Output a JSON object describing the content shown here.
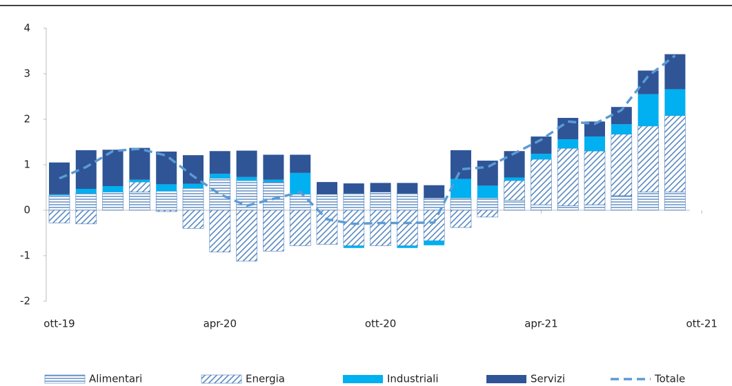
{
  "chart_data": {
    "type": "bar",
    "categories": [
      "ott-19",
      null,
      null,
      null,
      null,
      null,
      "apr-20",
      null,
      null,
      null,
      null,
      null,
      "ott-20",
      null,
      null,
      null,
      null,
      null,
      "apr-21",
      null,
      null,
      null,
      null,
      null,
      "ott-21"
    ],
    "series": [
      {
        "name": "Alimentari",
        "color": "#4a7ebb",
        "pattern": "horizontal",
        "values": [
          0.33,
          0.37,
          0.4,
          0.4,
          0.42,
          0.48,
          0.7,
          0.65,
          0.62,
          0.35,
          0.35,
          0.37,
          0.4,
          0.37,
          0.27,
          0.27,
          0.27,
          0.22,
          0.12,
          0.1,
          0.12,
          0.32,
          0.4,
          0.4,
          null
        ]
      },
      {
        "name": "Energia",
        "color": "#4a7ebb",
        "pattern": "diagonal",
        "values": [
          -0.28,
          -0.3,
          0,
          0.22,
          -0.03,
          -0.4,
          -0.92,
          -1.12,
          -0.9,
          -0.78,
          -0.75,
          -0.78,
          -0.78,
          -0.78,
          -0.67,
          -0.38,
          -0.15,
          0.43,
          1.0,
          1.26,
          1.18,
          1.35,
          1.45,
          1.68,
          null
        ]
      },
      {
        "name": "Industriali",
        "color": "#00b0f0",
        "values": [
          0.02,
          0.1,
          0.13,
          0.05,
          0.15,
          0.1,
          0.1,
          0.08,
          0.05,
          0.47,
          0.0,
          -0.05,
          0.0,
          -0.05,
          -0.1,
          0.42,
          0.27,
          0.07,
          0.12,
          0.2,
          0.32,
          0.22,
          0.7,
          0.58,
          null
        ]
      },
      {
        "name": "Servizi",
        "color": "#2f5597",
        "values": [
          0.7,
          0.85,
          0.8,
          0.7,
          0.72,
          0.63,
          0.5,
          0.58,
          0.55,
          0.4,
          0.27,
          0.22,
          0.2,
          0.23,
          0.28,
          0.63,
          0.55,
          0.58,
          0.38,
          0.47,
          0.33,
          0.38,
          0.52,
          0.77,
          null
        ]
      },
      {
        "name": "Totale",
        "type": "line",
        "color": "#5b9bd5",
        "dashed": true,
        "values": [
          0.7,
          0.95,
          1.3,
          1.35,
          1.2,
          0.75,
          0.35,
          0.1,
          0.25,
          0.4,
          -0.2,
          -0.3,
          -0.28,
          -0.28,
          -0.27,
          0.9,
          0.95,
          1.25,
          1.55,
          1.95,
          1.9,
          2.2,
          2.95,
          3.4,
          null
        ]
      }
    ],
    "ylim": [
      -2,
      4
    ],
    "yticks": [
      -2,
      -1,
      0,
      1,
      2,
      3,
      4
    ]
  }
}
